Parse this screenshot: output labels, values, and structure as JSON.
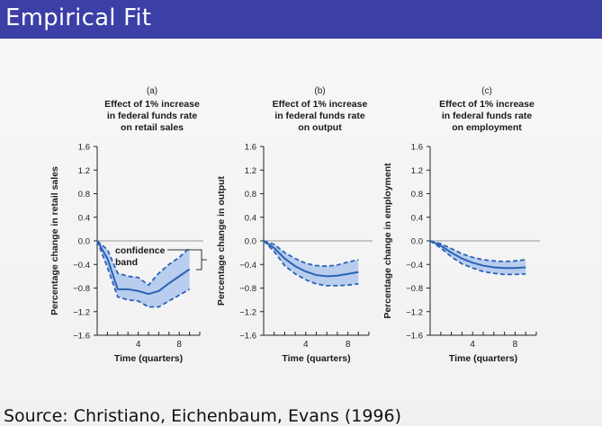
{
  "slide": {
    "title": "Empirical Fit",
    "source": "Source: Christiano, Eichenbaum, Evans (1996)"
  },
  "colors": {
    "title_bar": "#3b3fa6",
    "line": "#2b63b5",
    "band": "#b9cdee"
  },
  "chart_data": [
    {
      "type": "line",
      "panel": "(a)",
      "title": "Effect of 1% increase in federal funds rate on retail sales",
      "title_lines": [
        "Effect of 1% increase",
        "in federal funds rate",
        "on retail sales"
      ],
      "xlabel": "Time (quarters)",
      "ylabel": "Percentage change in retail sales",
      "ylim": [
        -1.6,
        1.6
      ],
      "yticks": [
        1.6,
        1.2,
        0.8,
        0.4,
        0.0,
        -0.4,
        -0.8,
        -1.2,
        -1.6
      ],
      "ytick_labels": [
        "1.6",
        "1.2",
        "0.8",
        "0.4",
        "0.0",
        "−0.4",
        "−0.8",
        "−1.2",
        "−1.6"
      ],
      "xlim": [
        0,
        10
      ],
      "xticks": [
        4,
        8
      ],
      "xtick_labels": [
        "4",
        "8"
      ],
      "annotation": {
        "lines": [
          "confidence",
          "band"
        ]
      },
      "x": [
        0,
        1,
        2,
        3,
        4,
        5,
        6,
        7,
        8,
        9
      ],
      "series": [
        {
          "role": "estimate",
          "values": [
            0.0,
            -0.3,
            -0.82,
            -0.82,
            -0.85,
            -0.9,
            -0.85,
            -0.72,
            -0.6,
            -0.48
          ]
        },
        {
          "role": "upper",
          "values": [
            0.0,
            -0.15,
            -0.55,
            -0.6,
            -0.62,
            -0.75,
            -0.55,
            -0.4,
            -0.28,
            -0.12
          ]
        },
        {
          "role": "lower",
          "values": [
            0.0,
            -0.45,
            -0.95,
            -1.0,
            -1.02,
            -1.12,
            -1.12,
            -1.02,
            -0.92,
            -0.82
          ]
        }
      ]
    },
    {
      "type": "line",
      "panel": "(b)",
      "title": "Effect of 1% increase in federal funds rate on output",
      "title_lines": [
        "Effect of 1% increase",
        "in federal funds rate",
        "on output"
      ],
      "xlabel": "Time (quarters)",
      "ylabel": "Percentage change in output",
      "ylim": [
        -1.6,
        1.6
      ],
      "yticks": [
        1.6,
        1.2,
        0.8,
        0.4,
        0.0,
        -0.4,
        -0.8,
        -1.2,
        -1.6
      ],
      "ytick_labels": [
        "1.6",
        "1.2",
        "0.8",
        "0.4",
        "0.0",
        "−0.4",
        "−0.8",
        "−1.2",
        "−1.6"
      ],
      "xlim": [
        0,
        10
      ],
      "xticks": [
        4,
        8
      ],
      "xtick_labels": [
        "4",
        "8"
      ],
      "x": [
        0,
        1,
        2,
        3,
        4,
        5,
        6,
        7,
        8,
        9
      ],
      "series": [
        {
          "role": "estimate",
          "values": [
            0.0,
            -0.12,
            -0.3,
            -0.43,
            -0.52,
            -0.58,
            -0.6,
            -0.59,
            -0.56,
            -0.53
          ]
        },
        {
          "role": "upper",
          "values": [
            0.0,
            -0.06,
            -0.2,
            -0.3,
            -0.38,
            -0.42,
            -0.43,
            -0.41,
            -0.36,
            -0.32
          ]
        },
        {
          "role": "lower",
          "values": [
            0.0,
            -0.18,
            -0.42,
            -0.56,
            -0.66,
            -0.73,
            -0.76,
            -0.76,
            -0.75,
            -0.73
          ]
        }
      ]
    },
    {
      "type": "line",
      "panel": "(c)",
      "title": "Effect of 1% increase in federal funds rate on employment",
      "title_lines": [
        "Effect of 1% increase",
        "in federal funds rate",
        "on employment"
      ],
      "xlabel": "Time (quarters)",
      "ylabel": "Percentage change in employment",
      "ylim": [
        -1.6,
        1.6
      ],
      "yticks": [
        1.6,
        1.2,
        0.8,
        0.4,
        0.0,
        -0.4,
        -0.8,
        -1.2,
        -1.6
      ],
      "ytick_labels": [
        "1.6",
        "1.2",
        "0.8",
        "0.4",
        "0.0",
        "−0.4",
        "−0.8",
        "−1.2",
        "−1.6"
      ],
      "xlim": [
        0,
        10
      ],
      "xticks": [
        4,
        8
      ],
      "xtick_labels": [
        "4",
        "8"
      ],
      "x": [
        0,
        1,
        2,
        3,
        4,
        5,
        6,
        7,
        8,
        9
      ],
      "series": [
        {
          "role": "estimate",
          "values": [
            0.0,
            -0.08,
            -0.2,
            -0.3,
            -0.37,
            -0.42,
            -0.45,
            -0.46,
            -0.46,
            -0.45
          ]
        },
        {
          "role": "upper",
          "values": [
            0.0,
            -0.05,
            -0.13,
            -0.22,
            -0.28,
            -0.32,
            -0.34,
            -0.35,
            -0.34,
            -0.32
          ]
        },
        {
          "role": "lower",
          "values": [
            0.0,
            -0.12,
            -0.27,
            -0.39,
            -0.46,
            -0.52,
            -0.55,
            -0.57,
            -0.57,
            -0.56
          ]
        }
      ]
    }
  ]
}
